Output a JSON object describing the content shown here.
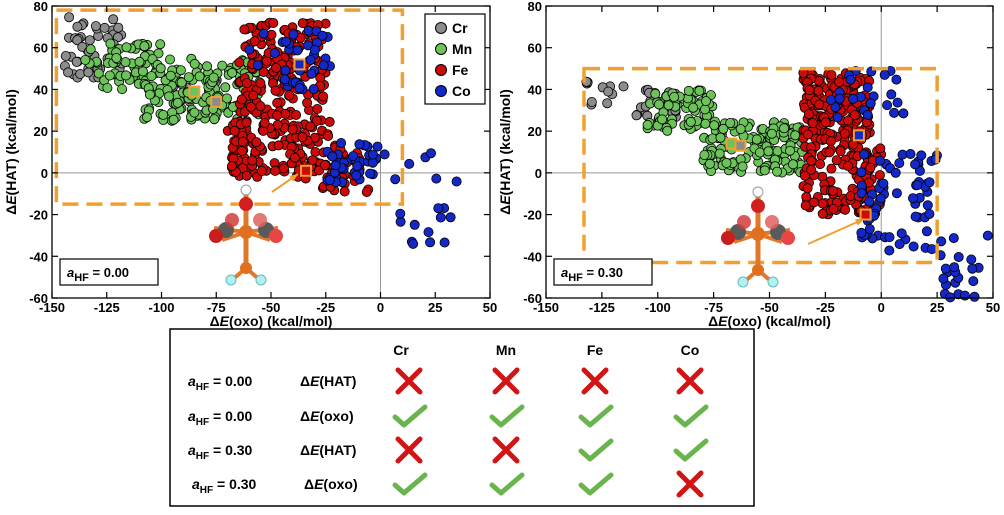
{
  "colors": {
    "Cr": "#8c8c8c",
    "Mn": "#6cc35a",
    "Fe": "#cc0a0a",
    "Co": "#1428c8",
    "region_box": "#f0a030",
    "cross": "#d21414",
    "check": "#6ab44e"
  },
  "chart_data": [
    {
      "type": "scatter",
      "xlabel": "ΔE(oxo) (kcal/mol)",
      "ylabel": "ΔE(HAT) (kcal/mol)",
      "xlim": [
        -150,
        50
      ],
      "ylim": [
        -60,
        80
      ],
      "xticks": [
        "-150",
        "-125",
        "-100",
        "-75",
        "-50",
        "-25",
        "0",
        "25",
        "50"
      ],
      "yticks": [
        "80",
        "60",
        "40",
        "20",
        "0",
        "-20",
        "-40",
        "-60"
      ],
      "legend": {
        "placement": "top-right",
        "entries": [
          "Cr",
          "Mn",
          "Fe",
          "Co"
        ]
      },
      "annotation": {
        "prefix": "a",
        "subscript": "HF",
        "value": " = 0.00"
      },
      "highlight_region": {
        "x": [
          -148,
          10
        ],
        "y": [
          -15,
          78
        ]
      },
      "series": [
        {
          "name": "Cr",
          "clusters": [
            {
              "x": [
                -145,
                -118
              ],
              "y": [
                45,
                75
              ],
              "n": 50
            },
            {
              "x": [
                -95,
                -70
              ],
              "y": [
                30,
                45
              ],
              "n": 10
            }
          ]
        },
        {
          "name": "Mn",
          "clusters": [
            {
              "x": [
                -135,
                -100
              ],
              "y": [
                40,
                62
              ],
              "n": 60
            },
            {
              "x": [
                -108,
                -55
              ],
              "y": [
                25,
                55
              ],
              "n": 140
            }
          ]
        },
        {
          "name": "Fe",
          "clusters": [
            {
              "x": [
                -65,
                -25
              ],
              "y": [
                25,
                72
              ],
              "n": 170
            },
            {
              "x": [
                -70,
                -20
              ],
              "y": [
                -2,
                25
              ],
              "n": 140
            },
            {
              "x": [
                -35,
                -5
              ],
              "y": [
                -10,
                15
              ],
              "n": 30
            }
          ]
        },
        {
          "name": "Co",
          "clusters": [
            {
              "x": [
                -60,
                -20
              ],
              "y": [
                40,
                70
              ],
              "n": 35
            },
            {
              "x": [
                -25,
                0
              ],
              "y": [
                -5,
                15
              ],
              "n": 40
            },
            {
              "x": [
                -5,
                35
              ],
              "y": [
                -35,
                10
              ],
              "n": 20
            }
          ]
        }
      ],
      "markers": [
        {
          "series": "Mn",
          "x": -85,
          "y": 39
        },
        {
          "series": "Cr",
          "x": -75,
          "y": 34
        },
        {
          "series": "Co",
          "x": -37,
          "y": 52
        },
        {
          "series": "Fe",
          "x": -34,
          "y": 1
        }
      ]
    },
    {
      "type": "scatter",
      "xlabel": "ΔE(oxo) (kcal/mol)",
      "ylabel": "ΔE(HAT) (kcal/mol)",
      "xlim": [
        -150,
        50
      ],
      "ylim": [
        -60,
        80
      ],
      "xticks": [
        "-150",
        "-125",
        "-100",
        "-75",
        "-50",
        "-25",
        "0",
        "25",
        "50"
      ],
      "yticks": [
        "80",
        "60",
        "40",
        "20",
        "0",
        "-20",
        "-40",
        "-60"
      ],
      "annotation": {
        "prefix": "a",
        "subscript": "HF",
        "value": " = 0.30"
      },
      "highlight_region": {
        "x": [
          -133,
          25
        ],
        "y": [
          -43,
          50
        ]
      },
      "series": [
        {
          "name": "Cr",
          "clusters": [
            {
              "x": [
                -132,
                -115
              ],
              "y": [
                30,
                45
              ],
              "n": 12
            },
            {
              "x": [
                -110,
                -90
              ],
              "y": [
                25,
                40
              ],
              "n": 25
            }
          ]
        },
        {
          "name": "Mn",
          "clusters": [
            {
              "x": [
                -105,
                -75
              ],
              "y": [
                20,
                40
              ],
              "n": 70
            },
            {
              "x": [
                -80,
                -35
              ],
              "y": [
                0,
                25
              ],
              "n": 140
            }
          ]
        },
        {
          "name": "Fe",
          "clusters": [
            {
              "x": [
                -35,
                -5
              ],
              "y": [
                15,
                48
              ],
              "n": 180
            },
            {
              "x": [
                -35,
                0
              ],
              "y": [
                -20,
                15
              ],
              "n": 120
            }
          ]
        },
        {
          "name": "Co",
          "clusters": [
            {
              "x": [
                -25,
                10
              ],
              "y": [
                25,
                50
              ],
              "n": 25
            },
            {
              "x": [
                -10,
                25
              ],
              "y": [
                -40,
                10
              ],
              "n": 70
            },
            {
              "x": [
                25,
                48
              ],
              "y": [
                -60,
                -30
              ],
              "n": 22
            }
          ]
        }
      ],
      "markers": [
        {
          "series": "Mn",
          "x": -67,
          "y": 14
        },
        {
          "series": "Cr",
          "x": -63,
          "y": 13
        },
        {
          "series": "Co",
          "x": -10,
          "y": 18
        },
        {
          "series": "Fe",
          "x": -7,
          "y": -20
        }
      ]
    }
  ],
  "table": {
    "headers": [
      "Cr",
      "Mn",
      "Fe",
      "Co"
    ],
    "rows": [
      {
        "prefix": "a",
        "subscript": "HF",
        "value": " = 0.00",
        "quantity": "ΔE(HAT)",
        "marks": [
          "cross",
          "cross",
          "cross",
          "cross"
        ]
      },
      {
        "prefix": "a",
        "subscript": "HF",
        "value": " = 0.00",
        "quantity": "ΔE(oxo)",
        "marks": [
          "check",
          "check",
          "check",
          "check"
        ]
      },
      {
        "prefix": "a",
        "subscript": "HF",
        "value": " = 0.30",
        "quantity": "ΔE(HAT)",
        "marks": [
          "cross",
          "cross",
          "check",
          "check"
        ]
      },
      {
        "prefix": "a",
        "subscript": "HF",
        "value": " = 0.30",
        "quantity": "ΔE(oxo)",
        "marks": [
          "check",
          "check",
          "check",
          "cross"
        ]
      }
    ]
  }
}
